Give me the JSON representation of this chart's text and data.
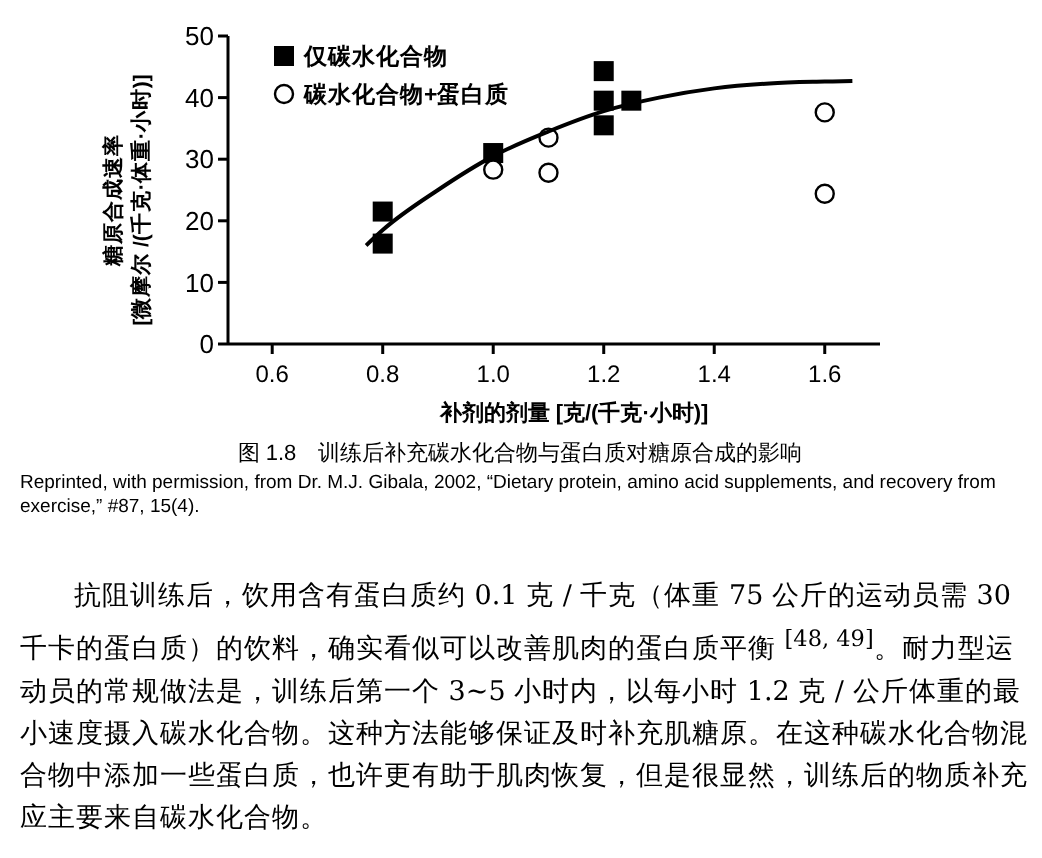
{
  "chart_data": {
    "type": "scatter",
    "xlabel": "补剂的剂量 [克/(千克·小时)]",
    "ylabel": "糖原合成速率\n[微摩尔 /(千克·体重·小时)]",
    "xlim": [
      0.52,
      1.7
    ],
    "xticks": [
      {
        "value": 0.6,
        "label": "0.6"
      },
      {
        "value": 0.8,
        "label": "0.8"
      },
      {
        "value": 1.0,
        "label": "1.0"
      },
      {
        "value": 1.2,
        "label": "1.2"
      },
      {
        "value": 1.4,
        "label": "1.4"
      },
      {
        "value": 1.6,
        "label": "1.6"
      }
    ],
    "ylim": [
      0,
      50
    ],
    "yticks": [
      0,
      10,
      20,
      30,
      40,
      50
    ],
    "legend": "top left",
    "series": [
      {
        "name": "仅碳水化合物",
        "marker": "square",
        "color": "#000000",
        "x": [
          0.8,
          0.8,
          1.0,
          1.2,
          1.2,
          1.2,
          1.25
        ],
        "values": [
          21.5,
          16.3,
          31,
          44.3,
          39.5,
          35.5,
          39.5
        ]
      },
      {
        "name": "碳水化合物+蛋白质",
        "marker": "circle",
        "color": "#000000",
        "x": [
          1.0,
          1.1,
          1.1,
          1.6,
          1.6
        ],
        "values": [
          28.3,
          33.5,
          27.8,
          37.6,
          24.4
        ]
      },
      {
        "type": "line",
        "marker": "none",
        "color": "#000000",
        "x": [
          0.77,
          0.8,
          0.9,
          1.0,
          1.1,
          1.2,
          1.3,
          1.4,
          1.5,
          1.6,
          1.65
        ],
        "values": [
          16,
          18.5,
          25,
          30.5,
          34.5,
          37.8,
          40,
          41.5,
          42.3,
          42.6,
          42.7
        ]
      }
    ],
    "annotations": [
      "图 1.8　训练后补充碳水化合物与蛋白质对糖原合成的影响",
      "Reprinted, with permission, from Dr. M.J. Gibala, 2002, “Dietary protein, amino acid supplements, and recovery from exercise,” #87, 15(4).",
      "抗阻训练后，饮用含有蛋白质约 0.1 克 / 千克（体重 75 公斤的运动员需 30 千卡的蛋白质）的饮料，确实看似可以改善肌肉的蛋白质平衡 $^{[48, 49]}$。耐力型运动员的常规做法是，训练后第一个 3~5 小时内，以每小时 1.2 克 / 公斤体重的最小速度摄入碳水化合物。这种方法能够保证及时补充肌糖原。在这种碳水化合物混合物中添加一些蛋白质，也许更有助于肌肉恢复，但是很显然，训练后的物质补充应主要来自碳水化合物。"
    ]
  }
}
